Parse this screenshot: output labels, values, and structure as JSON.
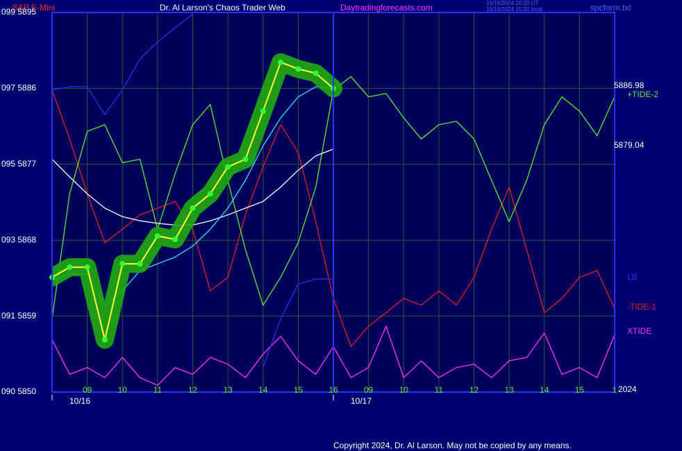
{
  "chart_data": {
    "type": "line",
    "title": "Dr. Al Larson's Chaos Trader Web",
    "subtitle": "S&P E-Mini",
    "site": "Daytradingforecasts.com",
    "timestamps": [
      "10/16/2024 20:20 UT",
      "10/16/2024 15:20 local"
    ],
    "file": "spcform.txt",
    "copyright": "Copyright 2024, Dr. Al Larson. May not be copied by any means.",
    "categories": [
      null,
      null,
      "09",
      null,
      "10",
      null,
      "11",
      null,
      "12",
      null,
      "13",
      null,
      "14",
      null,
      "15",
      null,
      "16",
      null,
      "09",
      null,
      "10",
      null,
      "11",
      null,
      "12",
      null,
      "13",
      null,
      "14",
      null,
      "15",
      null,
      "1"
    ],
    "dates": [
      "10/16",
      "10/17"
    ],
    "year": "2024",
    "ylim": [
      5850,
      5895
    ],
    "yticks": [
      {
        "value": 5850,
        "label": "090 5850"
      },
      {
        "value": 5859,
        "label": "091 5859"
      },
      {
        "value": 5868,
        "label": "093 5868"
      },
      {
        "value": 5877,
        "label": "095 5877"
      },
      {
        "value": 5886,
        "label": "097 5886"
      },
      {
        "value": 5895,
        "label": "099 5895"
      }
    ],
    "annotations": [
      "5886.98",
      "5879.04"
    ],
    "grid": true,
    "series": [
      {
        "name": "XTIDE",
        "color": "#ff33ff",
        "values": [
          5856.2,
          5852.1,
          5852.9,
          5851.7,
          5854.1,
          5851.7,
          5850.8,
          5852.9,
          5852.1,
          5854.1,
          5853.3,
          5851.7,
          5854.5,
          5856.6,
          5853.7,
          5852.1,
          5855.4,
          5851.7,
          5852.9,
          5857.8,
          5851.7,
          5853.7,
          5851.7,
          5852.9,
          5853.3,
          5851.7,
          5853.7,
          5854.1,
          5857,
          5852.1,
          5852.9,
          5851.7,
          5856.8
        ]
      },
      {
        "name": "-TIDE-1",
        "color": "#dd2222",
        "values": [
          5885.8,
          5880,
          5873.5,
          5867.7,
          5869.3,
          5871,
          5871.8,
          5872.6,
          5869.3,
          5862,
          5863.6,
          5871,
          5876.7,
          5881.7,
          5878.4,
          5870.2,
          5861.1,
          5855.4,
          5857.8,
          5859.4,
          5861.1,
          5860.3,
          5862,
          5860.3,
          5863.6,
          5869.3,
          5874.3,
          5866.9,
          5859.4,
          5861.1,
          5863.6,
          5864.4,
          5859.9
        ]
      },
      {
        "name": "+TIDE-2",
        "color": "#55ee33",
        "values": [
          5858.7,
          5873.5,
          5880.9,
          5881.7,
          5877.2,
          5877.6,
          5869.3,
          5875.9,
          5881.7,
          5884.1,
          5875.1,
          5866.9,
          5860.3,
          5863.6,
          5867.7,
          5874.3,
          5885.8,
          5887.4,
          5885,
          5885.4,
          5882.5,
          5880,
          5881.7,
          5882.1,
          5880,
          5875.1,
          5870.2,
          5875.1,
          5881.7,
          5885,
          5883.3,
          5880.4,
          5885
        ]
      },
      {
        "name": "LB",
        "color": "#2233ee",
        "values": [
          5885.8,
          5886.2,
          5886.2,
          5882.9,
          5885.8,
          5889.5,
          5891.5,
          5893.2,
          5894.8,
          null,
          null,
          null,
          5852.9,
          5858.7,
          5862.8,
          5863.4,
          5863.4,
          null,
          null,
          null,
          null,
          null,
          null,
          null,
          null,
          null,
          null,
          null,
          null,
          null,
          null,
          null,
          null
        ]
      },
      {
        "color": "#ffffff",
        "values": [
          5877.6,
          5875.5,
          5873.5,
          5871.8,
          5870.8,
          5870.3,
          5870,
          5869.8,
          5869.8,
          5870.3,
          5871,
          5871.8,
          5872.6,
          5874.3,
          5876.3,
          5878,
          5878.8,
          null,
          null,
          null,
          null,
          null,
          null,
          null,
          null,
          null,
          null,
          null,
          null,
          null,
          null,
          null,
          null
        ]
      },
      {
        "color": "#33ddff",
        "values": [
          5863.2,
          5864,
          5864,
          5860.3,
          5862,
          5864.4,
          5865.2,
          5866,
          5867.3,
          5869.3,
          5871.8,
          5875.1,
          5879.2,
          5882.5,
          5885,
          5886.2,
          5886,
          null,
          null,
          null,
          null,
          null,
          null,
          null,
          null,
          null,
          null,
          null,
          null,
          null,
          null,
          null,
          null
        ]
      },
      {
        "color": "#ffff33",
        "glow": "#22aa11",
        "values": [
          5863.6,
          5864.8,
          5864.8,
          5856.2,
          5865.2,
          5865.2,
          5868.5,
          5868.1,
          5871.8,
          5873.5,
          5876.7,
          5877.6,
          5883.3,
          5889.1,
          5888.3,
          5887.8,
          5886,
          null,
          null,
          null,
          null,
          null,
          null,
          null,
          null,
          null,
          null,
          null,
          null,
          null,
          null,
          null,
          null
        ]
      }
    ]
  }
}
